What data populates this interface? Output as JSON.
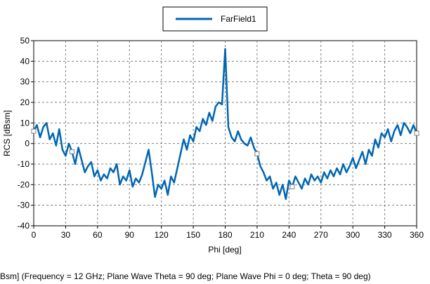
{
  "chart_data": {
    "type": "line",
    "title": "",
    "xlabel": "Phi [deg]",
    "ylabel": "RCS [dBsm]",
    "xlim": [
      0,
      360
    ],
    "ylim": [
      -40,
      50
    ],
    "x_ticks": [
      0,
      30,
      60,
      90,
      120,
      150,
      180,
      210,
      240,
      270,
      300,
      330,
      360
    ],
    "y_ticks": [
      -40,
      -30,
      -20,
      -10,
      0,
      10,
      20,
      30,
      40,
      50
    ],
    "grid": true,
    "legend": "top-center",
    "caption": "Bsm] (Frequency = 12 GHz; Plane Wave Theta = 90 deg; Plane Wave Phi = 0 deg; Theta = 90 deg)",
    "series": [
      {
        "name": "FarField1",
        "color": "#0066b3",
        "x": [
          0,
          3,
          6,
          9,
          12,
          15,
          18,
          21,
          24,
          27,
          30,
          33,
          36,
          39,
          42,
          45,
          48,
          51,
          54,
          57,
          60,
          63,
          66,
          69,
          72,
          75,
          78,
          81,
          84,
          87,
          90,
          93,
          96,
          99,
          102,
          105,
          108,
          111,
          114,
          117,
          120,
          123,
          126,
          129,
          132,
          135,
          138,
          141,
          144,
          147,
          150,
          153,
          156,
          159,
          162,
          165,
          168,
          171,
          174,
          177,
          180,
          183,
          186,
          189,
          192,
          195,
          198,
          201,
          204,
          207,
          210,
          213,
          216,
          219,
          222,
          225,
          228,
          231,
          234,
          237,
          240,
          243,
          246,
          249,
          252,
          255,
          258,
          261,
          264,
          267,
          270,
          273,
          276,
          279,
          282,
          285,
          288,
          291,
          294,
          297,
          300,
          303,
          306,
          309,
          312,
          315,
          318,
          321,
          324,
          327,
          330,
          333,
          336,
          339,
          342,
          345,
          348,
          351,
          354,
          357,
          360
        ],
        "y": [
          6,
          9,
          3,
          8,
          10,
          2,
          5,
          -1,
          7,
          -3,
          -6,
          0,
          -4,
          -10,
          -2,
          -8,
          -14,
          -11,
          -9,
          -16,
          -13,
          -18,
          -15,
          -17,
          -12,
          -14,
          -10,
          -20,
          -16,
          -18,
          -13,
          -21,
          -17,
          -19,
          -15,
          -9,
          -3,
          -14,
          -26,
          -20,
          -22,
          -18,
          -25,
          -16,
          -19,
          -12,
          -5,
          2,
          -3,
          4,
          1,
          8,
          6,
          12,
          9,
          15,
          11,
          18,
          20,
          19,
          46,
          8,
          3,
          1,
          6,
          2,
          0,
          -1,
          3,
          -2,
          -5,
          -11,
          -14,
          -18,
          -16,
          -22,
          -19,
          -25,
          -20,
          -27,
          -18,
          -21,
          -16,
          -19,
          -22,
          -17,
          -20,
          -15,
          -18,
          -16,
          -19,
          -14,
          -17,
          -13,
          -16,
          -12,
          -15,
          -10,
          -14,
          -11,
          -7,
          -12,
          -8,
          -4,
          -10,
          -3,
          -6,
          2,
          -2,
          5,
          3,
          7,
          1,
          6,
          9,
          4,
          10,
          8,
          5,
          9,
          5
        ]
      }
    ]
  }
}
